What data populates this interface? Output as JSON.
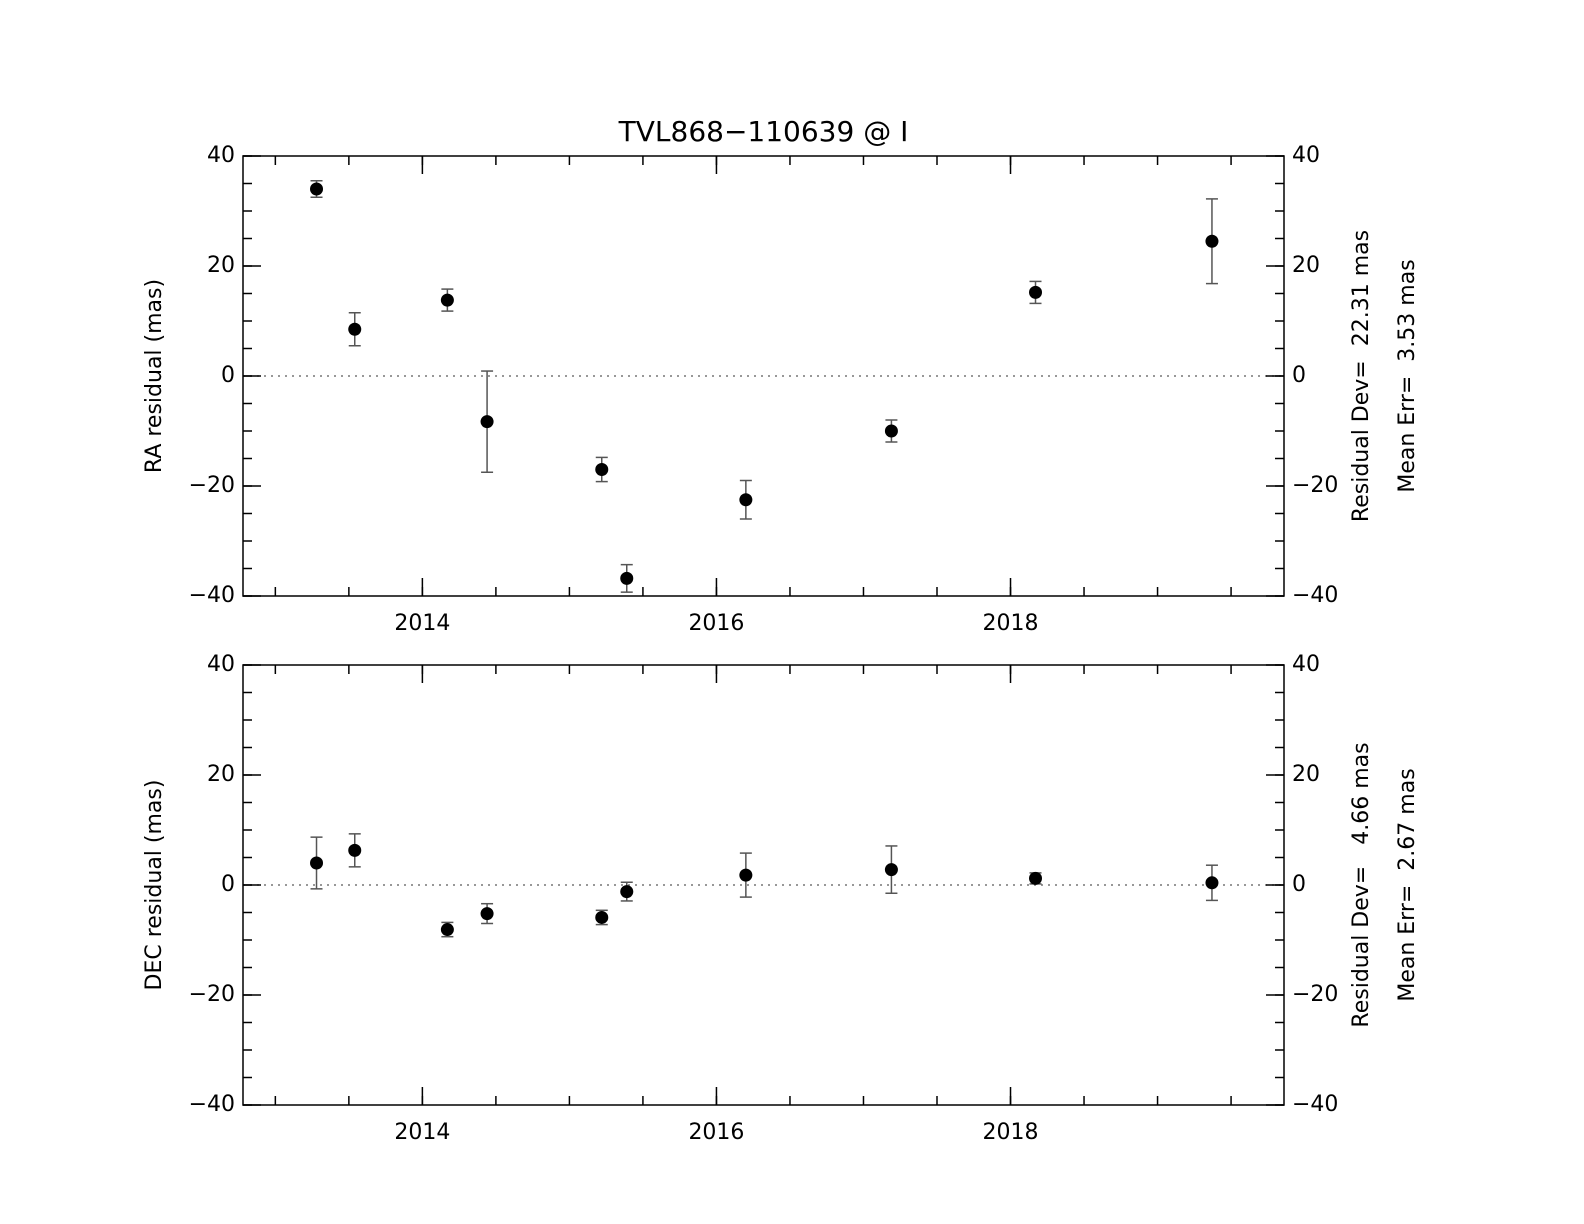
{
  "chart_data": [
    {
      "type": "errorbar",
      "title": "TVL868−110639 @ I",
      "y_label": "RA residual (mas)",
      "x": [
        2013.28,
        2013.54,
        2014.17,
        2014.44,
        2015.22,
        2015.39,
        2016.2,
        2017.19,
        2018.17,
        2019.37
      ],
      "values": [
        34,
        8.5,
        13.8,
        -8.3,
        -17,
        -36.8,
        -22.5,
        -10,
        15.2,
        24.5
      ],
      "errors": [
        1.5,
        3,
        2,
        9.2,
        2.2,
        2.5,
        3.5,
        2,
        2,
        7.7
      ],
      "color": "#000000",
      "error_color": "#555555",
      "xlim": [
        2012.78,
        2019.86
      ],
      "xticks": [
        2014,
        2016,
        2018
      ],
      "ylim": [
        -40,
        40
      ],
      "yticks": [
        {
          "value": -40,
          "label": "−40"
        },
        {
          "value": -20,
          "label": "−20"
        },
        0,
        20,
        40
      ],
      "minor_per_major": 4,
      "zero_line": true,
      "right_axis": true,
      "annotations": [
        "Residual Dev=  22.31 mas",
        "Mean Err=  3.53 mas"
      ]
    },
    {
      "type": "errorbar",
      "y_label": "DEC residual (mas)",
      "x": [
        2013.28,
        2013.54,
        2014.17,
        2014.44,
        2015.22,
        2015.39,
        2016.2,
        2017.19,
        2018.17,
        2019.37
      ],
      "values": [
        4,
        6.3,
        -8.1,
        -5.2,
        -5.9,
        -1.2,
        1.8,
        2.8,
        1.2,
        0.4
      ],
      "errors": [
        4.7,
        3,
        1.3,
        1.8,
        1.3,
        1.7,
        4,
        4.3,
        1,
        3.2
      ],
      "color": "#000000",
      "error_color": "#555555",
      "xlim": [
        2012.78,
        2019.86
      ],
      "xticks": [
        2014,
        2016,
        2018
      ],
      "ylim": [
        -40,
        40
      ],
      "yticks": [
        {
          "value": -40,
          "label": "−40"
        },
        {
          "value": -20,
          "label": "−20"
        },
        0,
        20,
        40
      ],
      "minor_per_major": 4,
      "zero_line": true,
      "right_axis": true,
      "annotations": [
        "Residual Dev=   4.66 mas",
        "Mean Err=  2.67 mas"
      ]
    }
  ]
}
